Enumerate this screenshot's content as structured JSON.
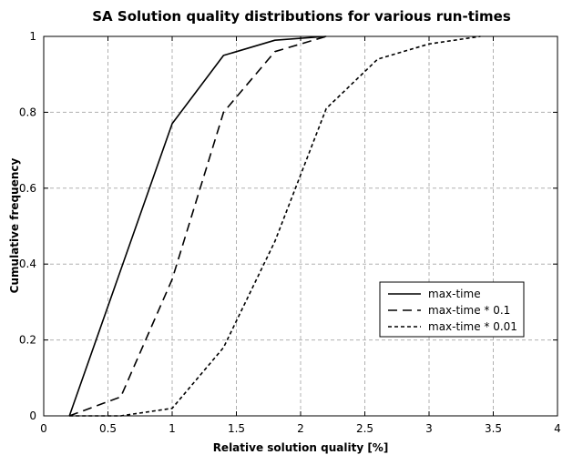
{
  "chart_data": {
    "type": "line",
    "title": "SA Solution quality distributions for various run-times",
    "xlabel": "Relative solution quality [%]",
    "ylabel": "Cumulative frequency",
    "xlim": [
      0,
      4
    ],
    "ylim": [
      0,
      1
    ],
    "xticks": [
      0,
      0.5,
      1,
      1.5,
      2,
      2.5,
      3,
      3.5,
      4
    ],
    "xtick_labels": [
      "0",
      "0.5",
      "1",
      "1.5",
      "2",
      "2.5",
      "3",
      "3.5",
      "4"
    ],
    "yticks": [
      0,
      0.2,
      0.4,
      0.6,
      0.8,
      1
    ],
    "ytick_labels": [
      "0",
      "0.2",
      "0.4",
      "0.6",
      "0.8",
      "1"
    ],
    "grid": true,
    "legend_position": "center-right",
    "series": [
      {
        "name": "max-time",
        "line_style": "solid",
        "color": "#000000",
        "x": [
          0.2,
          1.0,
          1.4,
          1.8,
          2.2
        ],
        "y": [
          0.0,
          0.77,
          0.95,
          0.99,
          1.0
        ]
      },
      {
        "name": "max-time * 0.1",
        "line_style": "dashed",
        "color": "#000000",
        "x": [
          0.2,
          0.6,
          1.0,
          1.4,
          1.8,
          2.2
        ],
        "y": [
          0.0,
          0.05,
          0.36,
          0.8,
          0.96,
          1.0
        ]
      },
      {
        "name": "max-time * 0.01",
        "line_style": "dotted",
        "color": "#000000",
        "x": [
          0.2,
          0.6,
          1.0,
          1.4,
          1.8,
          2.2,
          2.6,
          3.0,
          3.4
        ],
        "y": [
          0.0,
          0.0,
          0.02,
          0.18,
          0.46,
          0.81,
          0.94,
          0.98,
          1.0
        ]
      }
    ]
  }
}
